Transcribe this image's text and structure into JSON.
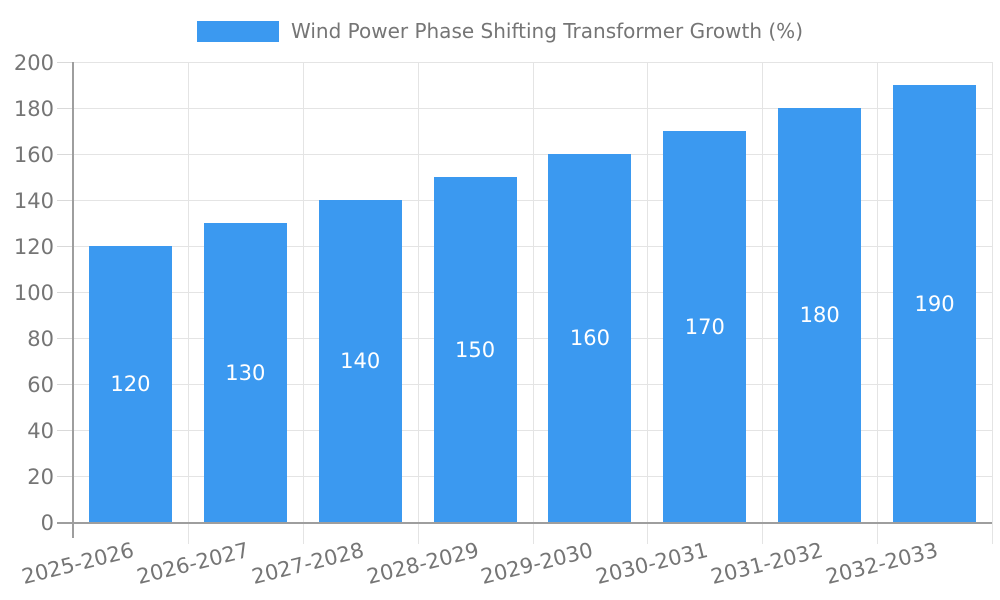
{
  "chart_data": {
    "type": "bar",
    "title": "Wind Power Phase Shifting Transformer Growth (%)",
    "categories": [
      "2025-2026",
      "2026-2027",
      "2027-2028",
      "2028-2029",
      "2029-2030",
      "2030-2031",
      "2031-2032",
      "2032-2033"
    ],
    "values": [
      120,
      130,
      140,
      150,
      160,
      170,
      180,
      190
    ],
    "xlabel": "",
    "ylabel": "",
    "ylim": [
      0,
      200
    ],
    "ytick_step": 20,
    "grid": true,
    "legend_position": "top-center",
    "bar_labels_inside": true,
    "colors": {
      "bar": "#3B99F0",
      "bar_label": "#FFFFFF",
      "axis_text": "#757575",
      "axis_line": "#9E9E9E",
      "gridline": "#E4E4E4",
      "tick": "#D9D9D9",
      "background": "#FFFFFF"
    }
  }
}
